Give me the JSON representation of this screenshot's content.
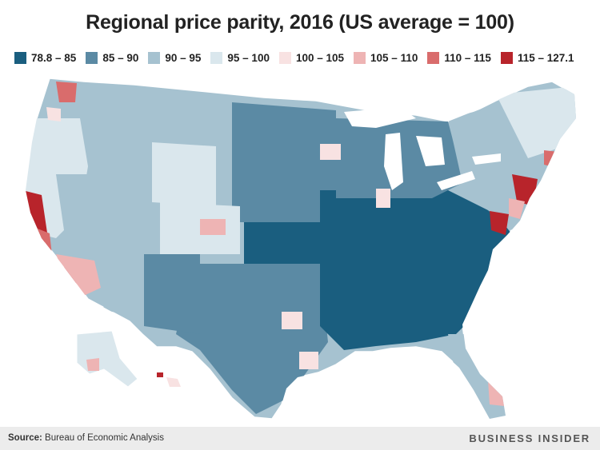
{
  "title": "Regional price parity, 2016 (US average = 100)",
  "legend": [
    {
      "label": "78.8 – 85",
      "color": "#1a5e7f"
    },
    {
      "label": "85 – 90",
      "color": "#5b8aa4"
    },
    {
      "label": "90 – 95",
      "color": "#a6c2d0"
    },
    {
      "label": "95 – 100",
      "color": "#dae7ed"
    },
    {
      "label": "100 – 105",
      "color": "#f8e2e2"
    },
    {
      "label": "105 – 110",
      "color": "#eeb4b4"
    },
    {
      "label": "110 – 115",
      "color": "#d96c6c"
    },
    {
      "label": "115 – 127.1",
      "color": "#b8242b"
    }
  ],
  "source": {
    "label": "Source:",
    "text": "Bureau of Economic Analysis"
  },
  "brand": "BUSINESS INSIDER"
}
